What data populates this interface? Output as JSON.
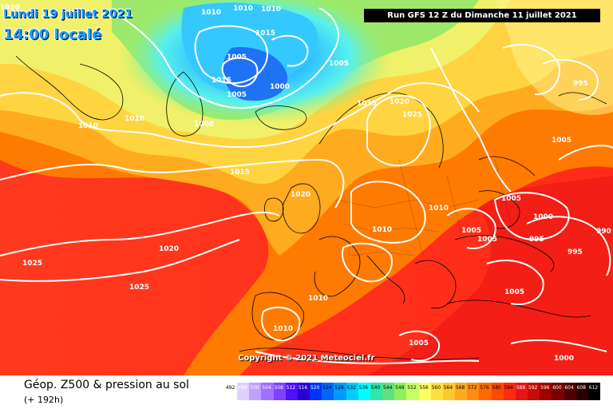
{
  "header": {
    "date": "Lundi 19 juillet 2021",
    "time": "14:00 localé",
    "run": "Run GFS 12 Z du Dimanche 11 juillet 2021",
    "copyright": "Copyright © 2021 Meteociel.fr"
  },
  "footer": {
    "title": "Géop. Z500 & pression au sol",
    "subtitle": "(+ 192h)"
  },
  "colors": {
    "ocean_red": "#ff2e1a",
    "deep_red": "#f21d14",
    "orange": "#ff7b00",
    "yellow": "#ffe05a",
    "green": "#7fe35e",
    "cyan": "#22e6ff",
    "blue": "#2a7fff",
    "isobar": "#ffffff",
    "coast": "#000000"
  },
  "legend": {
    "labels": [
      "492",
      "496",
      "500",
      "504",
      "508",
      "512",
      "516",
      "520",
      "524",
      "528",
      "532",
      "536",
      "540",
      "544",
      "548",
      "552",
      "556",
      "560",
      "564",
      "568",
      "572",
      "576",
      "580",
      "584",
      "588",
      "592",
      "596",
      "600",
      "604",
      "608",
      "612"
    ],
    "colors": [
      "#ffffff",
      "#e0d0ff",
      "#c0a0ff",
      "#a070ff",
      "#7f40ff",
      "#5010ff",
      "#2a00d4",
      "#0033ff",
      "#0066ff",
      "#0099ff",
      "#00ccff",
      "#00ffff",
      "#30e6aa",
      "#60e080",
      "#90f060",
      "#c8ff60",
      "#ffff60",
      "#ffe040",
      "#ffc830",
      "#ffaa20",
      "#ff8c10",
      "#ff6a00",
      "#ff4800",
      "#ff2a10",
      "#e81414",
      "#c80a0a",
      "#a00000",
      "#780000",
      "#500000",
      "#280000",
      "#000000"
    ]
  },
  "isobar_labels": [
    "1020",
    "1010",
    "1010",
    "1010",
    "1015",
    "1005",
    "1015",
    "1000",
    "1005",
    "1005",
    "1015",
    "1020",
    "1025",
    "1010",
    "1000",
    "1010",
    "1015",
    "1020",
    "1025",
    "1025",
    "1020",
    "1010",
    "1005",
    "995",
    "1005",
    "1000",
    "995",
    "995",
    "990",
    "1010",
    "1005",
    "1010",
    "1005",
    "1005",
    "1010",
    "1000",
    "1005"
  ]
}
